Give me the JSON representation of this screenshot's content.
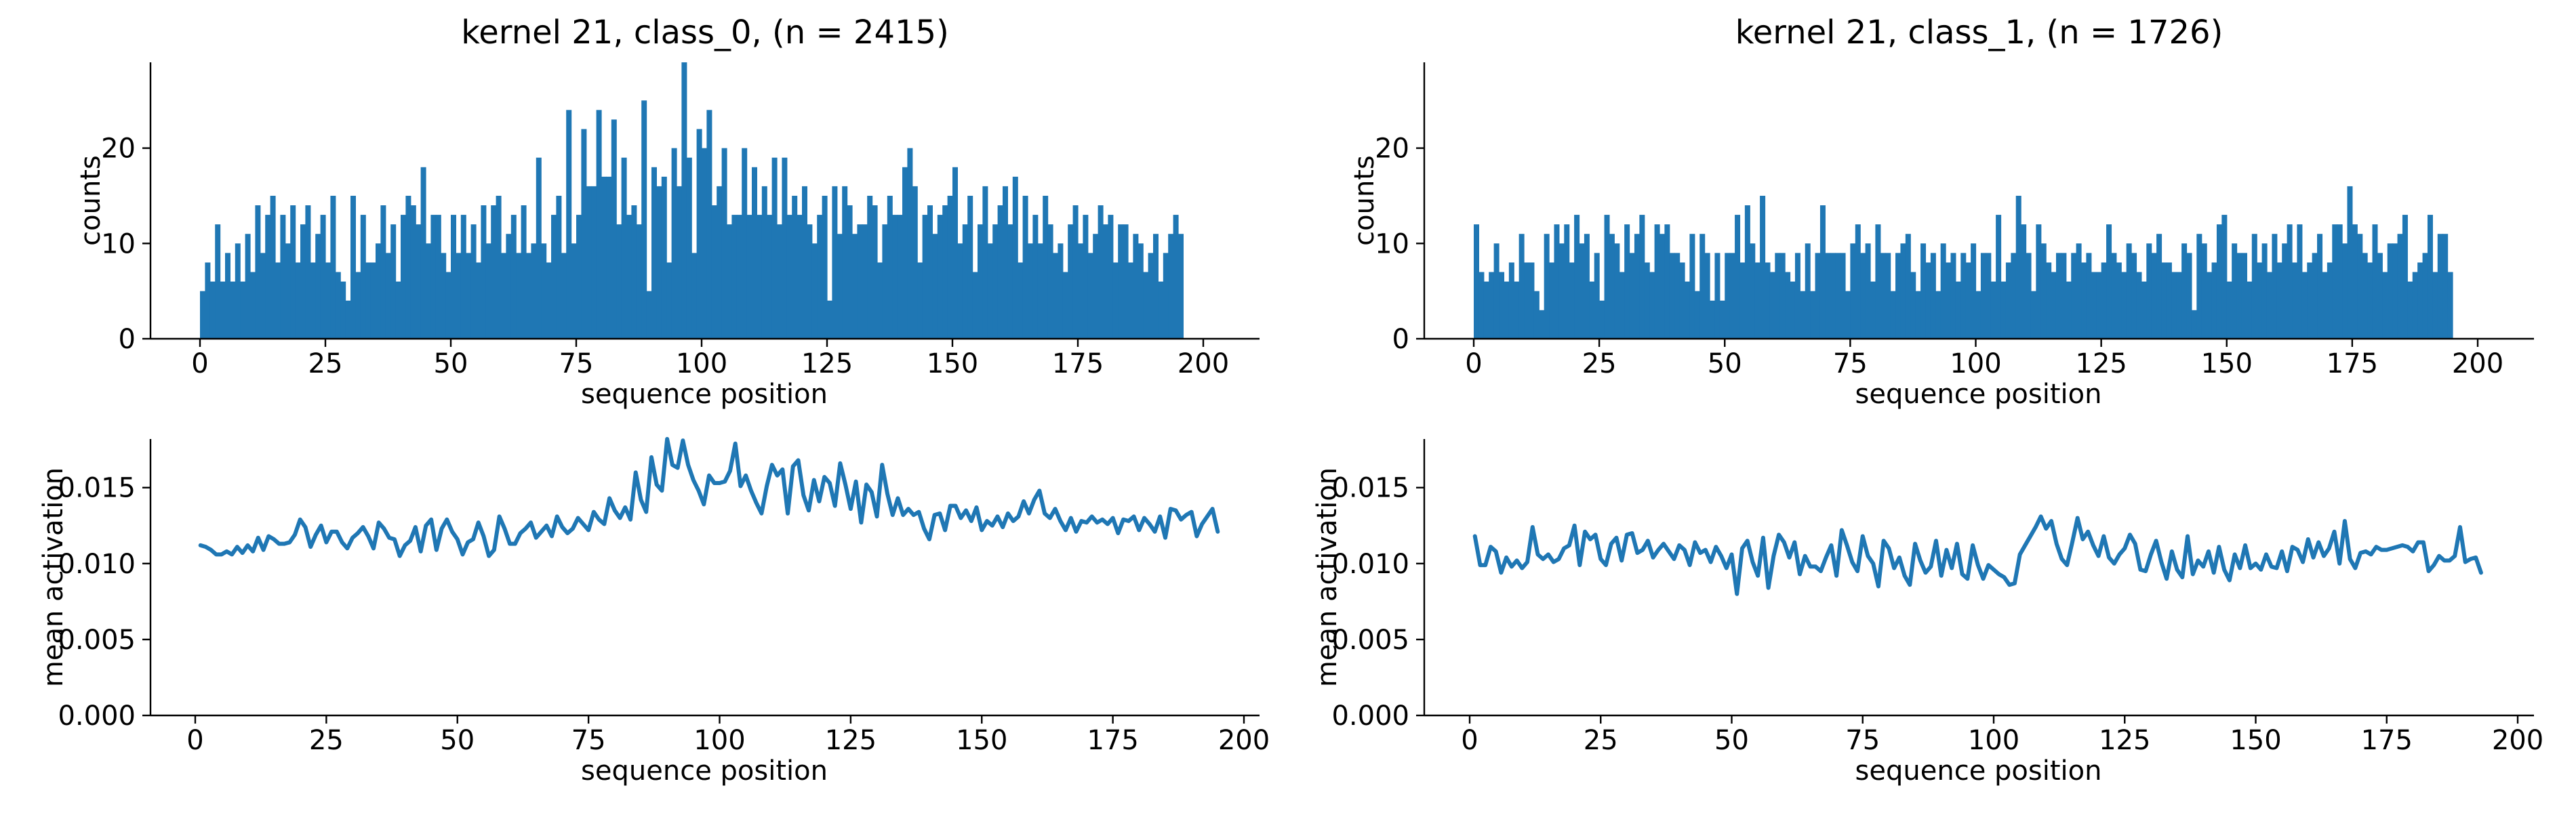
{
  "chart_data": [
    {
      "type": "bar",
      "title": "kernel 21, class_0, (n = 2415)",
      "xlabel": "sequence position",
      "ylabel": "counts",
      "xlim": [
        -7.5,
        201
      ],
      "ylim": [
        0,
        29
      ],
      "xticks": [
        0,
        25,
        50,
        75,
        100,
        125,
        150,
        175,
        200
      ],
      "yticks": [
        0,
        10,
        20
      ],
      "x_start": 0,
      "bin_width": 1,
      "values": [
        5,
        8,
        6,
        12,
        6,
        9,
        6,
        10,
        6,
        11,
        7,
        14,
        9,
        13,
        15,
        8,
        13,
        10,
        14,
        8,
        12,
        14,
        8,
        11,
        13,
        8,
        15,
        7,
        6,
        4,
        15,
        7,
        13,
        8,
        8,
        10,
        14,
        9,
        12,
        6,
        13,
        15,
        14,
        12,
        18,
        10,
        13,
        13,
        9,
        7,
        13,
        9,
        13,
        9,
        12,
        8,
        14,
        10,
        14,
        15,
        9,
        11,
        13,
        9,
        14,
        9,
        10,
        19,
        10,
        8,
        13,
        15,
        9,
        24,
        10,
        13,
        22,
        16,
        16,
        24,
        17,
        17,
        23,
        12,
        19,
        13,
        14,
        12,
        25,
        5,
        18,
        16,
        17,
        8,
        20,
        16,
        29,
        19,
        9,
        22,
        20,
        24,
        14,
        16,
        20,
        12,
        13,
        13,
        20,
        13,
        18,
        13,
        16,
        13,
        19,
        12,
        19,
        13,
        15,
        13,
        16,
        12,
        10,
        13,
        15,
        4,
        16,
        11,
        16,
        14,
        11,
        12,
        12,
        15,
        14,
        8,
        12,
        15,
        13,
        13,
        18,
        20,
        16,
        8,
        13,
        14,
        11,
        13,
        14,
        15,
        18,
        10,
        12,
        15,
        7,
        12,
        16,
        10,
        12,
        14,
        16,
        12,
        17,
        8,
        15,
        10,
        13,
        10,
        15,
        12,
        9,
        10,
        7,
        12,
        14,
        10,
        13,
        9,
        11,
        14,
        12,
        13,
        8,
        12,
        12,
        8,
        11,
        10,
        7,
        9,
        11,
        6,
        9,
        11,
        13,
        11
      ]
    },
    {
      "type": "bar",
      "title": "kernel 21, class_1, (n = 1726)",
      "xlabel": "sequence position",
      "ylabel": "counts",
      "xlim": [
        -7.5,
        201
      ],
      "ylim": [
        0,
        29
      ],
      "xticks": [
        0,
        25,
        50,
        75,
        100,
        125,
        150,
        175,
        200
      ],
      "yticks": [
        0,
        10,
        20
      ],
      "x_start": 0,
      "bin_width": 1,
      "values": [
        12,
        7,
        6,
        7,
        10,
        7,
        6,
        8,
        6,
        11,
        8,
        8,
        5,
        3,
        11,
        8,
        12,
        10,
        12,
        8,
        13,
        10,
        11,
        6,
        9,
        4,
        13,
        11,
        10,
        7,
        12,
        9,
        11,
        13,
        8,
        7,
        12,
        11,
        12,
        9,
        9,
        8,
        6,
        11,
        5,
        11,
        9,
        4,
        9,
        4,
        9,
        9,
        13,
        8,
        14,
        10,
        8,
        15,
        8,
        7,
        9,
        9,
        7,
        6,
        9,
        5,
        10,
        5,
        9,
        14,
        9,
        9,
        9,
        9,
        5,
        10,
        12,
        9,
        10,
        6,
        12,
        9,
        9,
        5,
        9,
        10,
        11,
        7,
        5,
        10,
        8,
        9,
        5,
        10,
        8,
        9,
        6,
        9,
        8,
        10,
        5,
        9,
        9,
        6,
        13,
        6,
        8,
        9,
        15,
        12,
        9,
        5,
        12,
        10,
        8,
        7,
        9,
        9,
        6,
        9,
        10,
        8,
        9,
        7,
        7,
        8,
        12,
        9,
        8,
        7,
        10,
        9,
        7,
        6,
        10,
        9,
        11,
        8,
        8,
        7,
        7,
        10,
        9,
        3,
        11,
        10,
        7,
        8,
        12,
        13,
        6,
        10,
        9,
        9,
        6,
        11,
        8,
        10,
        7,
        11,
        8,
        10,
        12,
        8,
        12,
        7,
        8,
        9,
        11,
        7,
        8,
        12,
        12,
        10,
        16,
        12,
        11,
        9,
        8,
        12,
        9,
        7,
        10,
        10,
        11,
        13,
        6,
        7,
        8,
        9,
        13,
        7,
        11,
        11,
        7
      ]
    },
    {
      "type": "line",
      "title": "",
      "xlabel": "sequence position",
      "ylabel": "mean activation",
      "xlim": [
        -9.5,
        201
      ],
      "ylim": [
        0,
        0.0182
      ],
      "xticks": [
        0,
        25,
        50,
        75,
        100,
        125,
        150,
        175,
        200
      ],
      "yticks": [
        0.0,
        0.005,
        0.01,
        0.015
      ],
      "ytick_labels": [
        "0.000",
        "0.005",
        "0.010",
        "0.015"
      ],
      "x_start": 1,
      "x_step": 1,
      "values": [
        0.0112,
        0.0111,
        0.0109,
        0.0106,
        0.0106,
        0.0108,
        0.0106,
        0.0111,
        0.0107,
        0.0112,
        0.0108,
        0.0117,
        0.0109,
        0.0118,
        0.0116,
        0.0113,
        0.0113,
        0.0114,
        0.0119,
        0.0129,
        0.0124,
        0.0111,
        0.0119,
        0.0125,
        0.0114,
        0.0121,
        0.0121,
        0.0114,
        0.011,
        0.0117,
        0.012,
        0.0124,
        0.0118,
        0.011,
        0.0127,
        0.0123,
        0.0117,
        0.0116,
        0.0105,
        0.0112,
        0.0115,
        0.0124,
        0.0108,
        0.0125,
        0.0129,
        0.0109,
        0.0123,
        0.0129,
        0.0121,
        0.0116,
        0.0106,
        0.0114,
        0.0116,
        0.0127,
        0.0118,
        0.0105,
        0.0109,
        0.0131,
        0.0123,
        0.0113,
        0.0113,
        0.012,
        0.0123,
        0.0127,
        0.0117,
        0.0121,
        0.0125,
        0.0118,
        0.0131,
        0.0124,
        0.012,
        0.0123,
        0.013,
        0.0126,
        0.0122,
        0.0134,
        0.0129,
        0.0126,
        0.0143,
        0.0135,
        0.013,
        0.0137,
        0.0129,
        0.016,
        0.0142,
        0.0134,
        0.017,
        0.0152,
        0.0148,
        0.0182,
        0.0165,
        0.0163,
        0.0181,
        0.0165,
        0.0155,
        0.0148,
        0.0139,
        0.0158,
        0.0153,
        0.0153,
        0.0154,
        0.0161,
        0.0179,
        0.0151,
        0.0158,
        0.0148,
        0.014,
        0.0133,
        0.0151,
        0.0165,
        0.0158,
        0.0162,
        0.0133,
        0.0164,
        0.0168,
        0.0145,
        0.0135,
        0.0155,
        0.0141,
        0.0157,
        0.0153,
        0.0138,
        0.0166,
        0.0152,
        0.0136,
        0.0154,
        0.0127,
        0.0152,
        0.0147,
        0.0131,
        0.0165,
        0.0146,
        0.0132,
        0.0143,
        0.0132,
        0.0136,
        0.0132,
        0.0134,
        0.0123,
        0.0116,
        0.0132,
        0.0133,
        0.0122,
        0.0138,
        0.0138,
        0.013,
        0.0135,
        0.0128,
        0.0137,
        0.0122,
        0.0128,
        0.0125,
        0.0131,
        0.0124,
        0.0133,
        0.0128,
        0.0131,
        0.0141,
        0.0133,
        0.0142,
        0.0148,
        0.0133,
        0.013,
        0.0136,
        0.0128,
        0.0122,
        0.013,
        0.0121,
        0.0128,
        0.0127,
        0.0131,
        0.0127,
        0.0129,
        0.0126,
        0.013,
        0.012,
        0.0129,
        0.0128,
        0.0131,
        0.0122,
        0.013,
        0.0126,
        0.0121,
        0.0131,
        0.0117,
        0.0136,
        0.0135,
        0.0129,
        0.0132,
        0.0134,
        0.0118,
        0.0126,
        0.0131,
        0.0136,
        0.0121
      ]
    },
    {
      "type": "line",
      "title": "",
      "xlabel": "sequence position",
      "ylabel": "mean activation",
      "xlim": [
        -9.5,
        201
      ],
      "ylim": [
        0,
        0.0182
      ],
      "xticks": [
        0,
        25,
        50,
        75,
        100,
        125,
        150,
        175,
        200
      ],
      "yticks": [
        0.0,
        0.005,
        0.01,
        0.015
      ],
      "ytick_labels": [
        "0.000",
        "0.005",
        "0.010",
        "0.015"
      ],
      "x_start": 1,
      "x_step": 1,
      "values": [
        0.0118,
        0.0099,
        0.0099,
        0.0111,
        0.0108,
        0.0094,
        0.0104,
        0.0098,
        0.0102,
        0.0097,
        0.0101,
        0.0124,
        0.0106,
        0.0103,
        0.0106,
        0.0101,
        0.0103,
        0.011,
        0.0112,
        0.0125,
        0.0099,
        0.0121,
        0.0116,
        0.0119,
        0.0103,
        0.0099,
        0.0113,
        0.0117,
        0.0102,
        0.0119,
        0.012,
        0.0107,
        0.0109,
        0.0115,
        0.0104,
        0.0109,
        0.0113,
        0.0108,
        0.0103,
        0.0112,
        0.0109,
        0.0099,
        0.0114,
        0.0107,
        0.0109,
        0.0101,
        0.0111,
        0.0105,
        0.0097,
        0.0106,
        0.008,
        0.011,
        0.0115,
        0.0101,
        0.0092,
        0.0117,
        0.0084,
        0.0105,
        0.0119,
        0.0114,
        0.0104,
        0.0114,
        0.0093,
        0.0105,
        0.0098,
        0.0098,
        0.0095,
        0.0104,
        0.0112,
        0.0092,
        0.0122,
        0.0112,
        0.0101,
        0.0095,
        0.0118,
        0.0105,
        0.01,
        0.0085,
        0.0115,
        0.011,
        0.0097,
        0.0104,
        0.0092,
        0.0086,
        0.0113,
        0.0102,
        0.0094,
        0.0098,
        0.0115,
        0.0092,
        0.0109,
        0.0097,
        0.0113,
        0.0093,
        0.009,
        0.0112,
        0.0099,
        0.009,
        0.0099,
        0.0096,
        0.0093,
        0.0091,
        0.0086,
        0.0087,
        0.0106,
        0.0112,
        0.0118,
        0.0124,
        0.0131,
        0.0123,
        0.0128,
        0.0113,
        0.0103,
        0.0099,
        0.0114,
        0.013,
        0.0116,
        0.0121,
        0.0112,
        0.0105,
        0.0118,
        0.0104,
        0.01,
        0.0106,
        0.011,
        0.0119,
        0.0113,
        0.0096,
        0.0095,
        0.0106,
        0.0115,
        0.0101,
        0.009,
        0.0108,
        0.0096,
        0.0091,
        0.0118,
        0.0093,
        0.0102,
        0.0098,
        0.0108,
        0.0094,
        0.0111,
        0.0096,
        0.0089,
        0.0106,
        0.0097,
        0.0112,
        0.0097,
        0.01,
        0.0096,
        0.0106,
        0.0098,
        0.0097,
        0.0108,
        0.0095,
        0.0111,
        0.0109,
        0.0101,
        0.0116,
        0.0104,
        0.0114,
        0.0105,
        0.011,
        0.0121,
        0.01,
        0.0128,
        0.0103,
        0.0097,
        0.0107,
        0.0108,
        0.0106,
        0.0111,
        0.0109,
        0.0109,
        0.011,
        0.0111,
        0.0112,
        0.0111,
        0.0108,
        0.0114,
        0.0114,
        0.0095,
        0.0099,
        0.0105,
        0.0102,
        0.0102,
        0.0105,
        0.0124,
        0.0101,
        0.0103,
        0.0104,
        0.0094
      ]
    }
  ]
}
